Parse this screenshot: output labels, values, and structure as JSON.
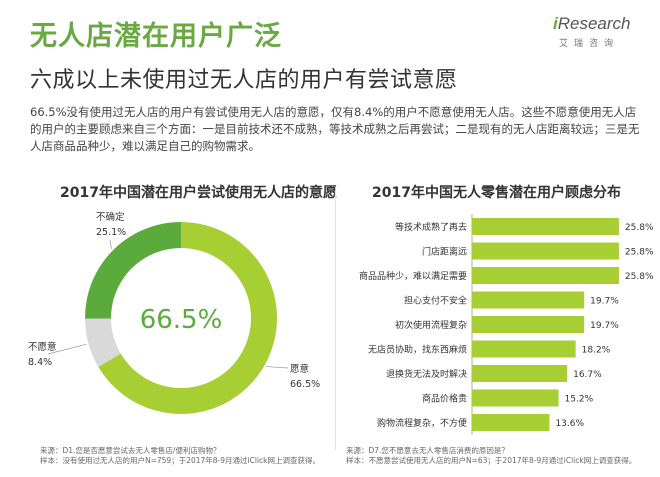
{
  "header": {
    "title": "无人店潜在用户广泛",
    "subtitle": "六成以上未使用过无人店的用户有尝试意愿",
    "logo_text_i": "i",
    "logo_text_rest": "Research",
    "logo_sub": "艾瑞咨询"
  },
  "intro": "66.5%没有使用过无人店的用户有尝试使用无人店的意愿，仅有8.4%的用户不愿意使用无人店。这些不愿意使用无人店的用户的主要顾虑来自三个方面：一是目前技术还不成熟，等技术成熟之后再尝试；二是现有的无人店距离较远；三是无人店商品品种少，难以满足自己的购物需求。",
  "colors": {
    "accent": "#6aa842",
    "willing": "#a7cf33",
    "uncertain": "#5aab3c",
    "unwilling": "#d9d9d9",
    "bar": "#a7cf33"
  },
  "chart_data": [
    {
      "type": "pie",
      "title": "2017年中国潜在用户尝试使用无人店的意愿",
      "center_label": "66.5%",
      "slices": [
        {
          "name": "愿意",
          "value": 66.5,
          "label": "66.5%"
        },
        {
          "name": "不愿意",
          "value": 8.4,
          "label": "8.4%"
        },
        {
          "name": "不确定",
          "value": 25.1,
          "label": "25.1%"
        }
      ],
      "source_lines": [
        "来源：D1.您是否愿意尝试去无人零售店/便利店购物？",
        "样本：没有使用过无人店的用户N=759；于2017年8-9月通过iClick网上调查获得。"
      ]
    },
    {
      "type": "bar",
      "orientation": "horizontal",
      "title": "2017年中国无人零售潜在用户顾虑分布",
      "categories": [
        "等技术成熟了再去",
        "门店距离远",
        "商品品种少，难以满足需要",
        "担心支付不安全",
        "初次使用流程复杂",
        "无店员协助，找东西麻烦",
        "退换货无法及时解决",
        "商品价格贵",
        "购物流程复杂，不方便"
      ],
      "values": [
        25.8,
        25.8,
        25.8,
        19.7,
        19.7,
        18.2,
        16.7,
        15.2,
        13.6
      ],
      "value_labels": [
        "25.8%",
        "25.8%",
        "25.8%",
        "19.7%",
        "19.7%",
        "18.2%",
        "16.7%",
        "15.2%",
        "13.6%"
      ],
      "xlim": [
        0,
        30
      ],
      "source_lines": [
        "来源：D7.您不愿意去无人零售店消费的原因是？",
        "样本：不愿意尝试使用无人店的用户N=63；于2017年8-9月通过iClick网上调查获得。"
      ]
    }
  ]
}
